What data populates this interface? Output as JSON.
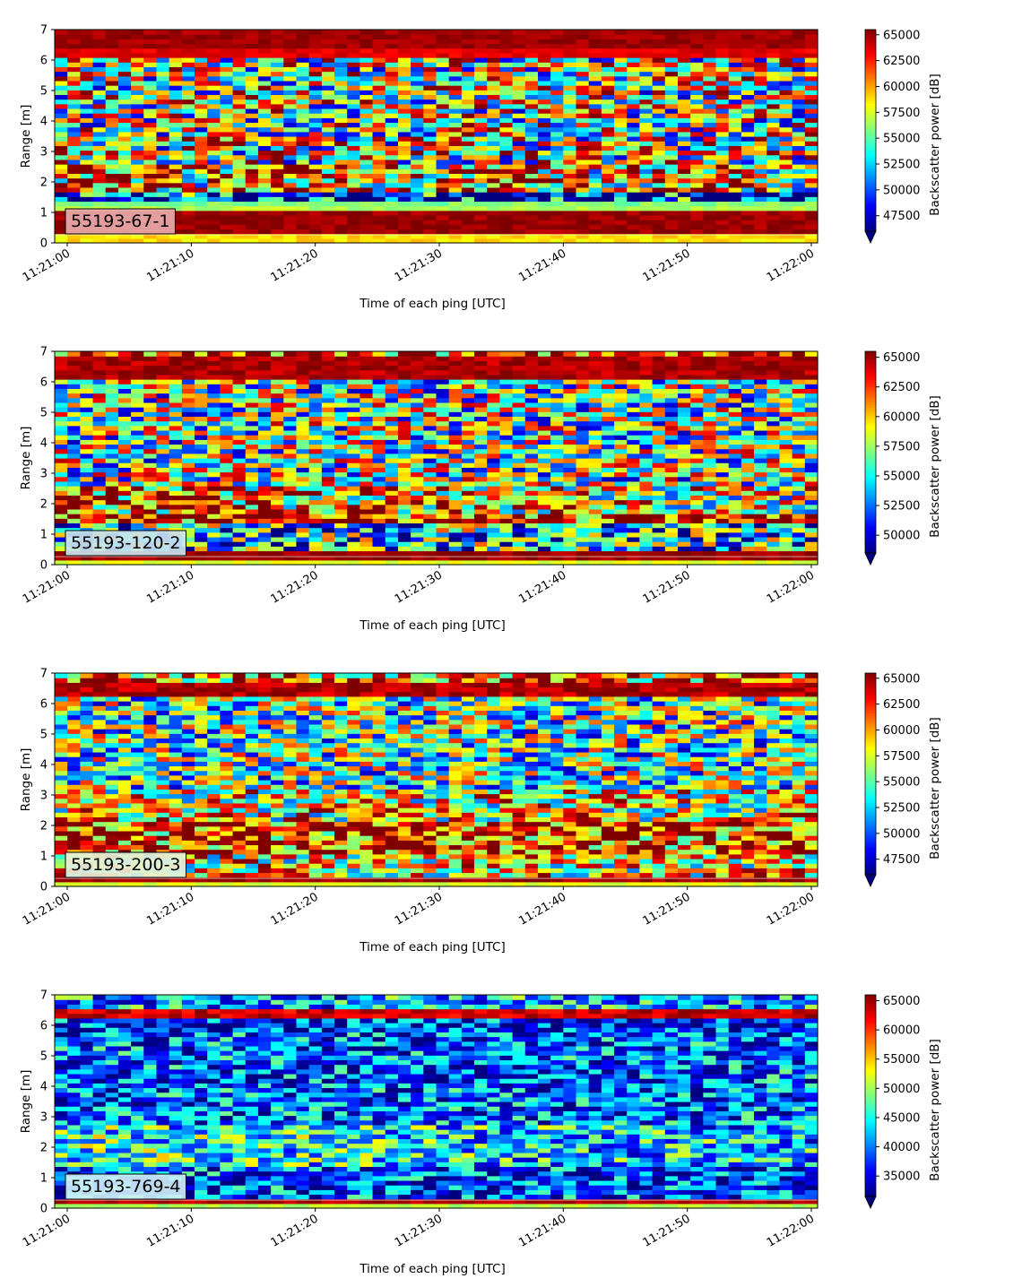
{
  "chart_data": [
    {
      "type": "heatmap",
      "id_label": "55193-67-1",
      "id_label_bg": "#e9aaaa",
      "xlabel": "Time of each ping [UTC]",
      "ylabel": "Range [m]",
      "colorbar_label": "Backscatter power [dB]",
      "colormap": "jet",
      "x_ticks": [
        "11:21:00",
        "11:21:10",
        "11:21:20",
        "11:21:30",
        "11:21:40",
        "11:21:50",
        "11:22:00"
      ],
      "y_ticks": [
        0,
        1,
        2,
        3,
        4,
        5,
        6,
        7
      ],
      "ylim": [
        0,
        7
      ],
      "clim": [
        46000,
        65500
      ],
      "colorbar_ticks": [
        47500,
        50000,
        52500,
        55000,
        57500,
        60000,
        62500,
        65000
      ],
      "colorbar_extend": "min",
      "pattern": "A"
    },
    {
      "type": "heatmap",
      "id_label": "55193-120-2",
      "id_label_bg": "#c9e4ee",
      "xlabel": "Time of each ping [UTC]",
      "ylabel": "Range [m]",
      "colorbar_label": "Backscatter power [dB]",
      "colormap": "jet",
      "x_ticks": [
        "11:21:00",
        "11:21:10",
        "11:21:20",
        "11:21:30",
        "11:21:40",
        "11:21:50",
        "11:22:00"
      ],
      "y_ticks": [
        0,
        1,
        2,
        3,
        4,
        5,
        6,
        7
      ],
      "ylim": [
        0,
        7
      ],
      "clim": [
        48500,
        65500
      ],
      "colorbar_ticks": [
        50000,
        52500,
        55000,
        57500,
        60000,
        62500,
        65000
      ],
      "colorbar_extend": "min",
      "pattern": "B"
    },
    {
      "type": "heatmap",
      "id_label": "55193-200-3",
      "id_label_bg": "#e4f0d8",
      "xlabel": "Time of each ping [UTC]",
      "ylabel": "Range [m]",
      "colorbar_label": "Backscatter power [dB]",
      "colormap": "jet",
      "x_ticks": [
        "11:21:00",
        "11:21:10",
        "11:21:20",
        "11:21:30",
        "11:21:40",
        "11:21:50",
        "11:22:00"
      ],
      "y_ticks": [
        0,
        1,
        2,
        3,
        4,
        5,
        6,
        7
      ],
      "ylim": [
        0,
        7
      ],
      "clim": [
        46000,
        65500
      ],
      "colorbar_ticks": [
        47500,
        50000,
        52500,
        55000,
        57500,
        60000,
        62500,
        65000
      ],
      "colorbar_extend": "min",
      "pattern": "C"
    },
    {
      "type": "heatmap",
      "id_label": "55193-769-4",
      "id_label_bg": "#cdeef6",
      "xlabel": "Time of each ping [UTC]",
      "ylabel": "Range [m]",
      "colorbar_label": "Backscatter power [dB]",
      "colormap": "jet",
      "x_ticks": [
        "11:21:00",
        "11:21:10",
        "11:21:20",
        "11:21:30",
        "11:21:40",
        "11:21:50",
        "11:22:00"
      ],
      "y_ticks": [
        0,
        1,
        2,
        3,
        4,
        5,
        6,
        7
      ],
      "ylim": [
        0,
        7
      ],
      "clim": [
        31500,
        66000
      ],
      "colorbar_ticks": [
        35000,
        40000,
        45000,
        50000,
        55000,
        60000,
        65000
      ],
      "colorbar_extend": "min",
      "pattern": "D"
    }
  ]
}
